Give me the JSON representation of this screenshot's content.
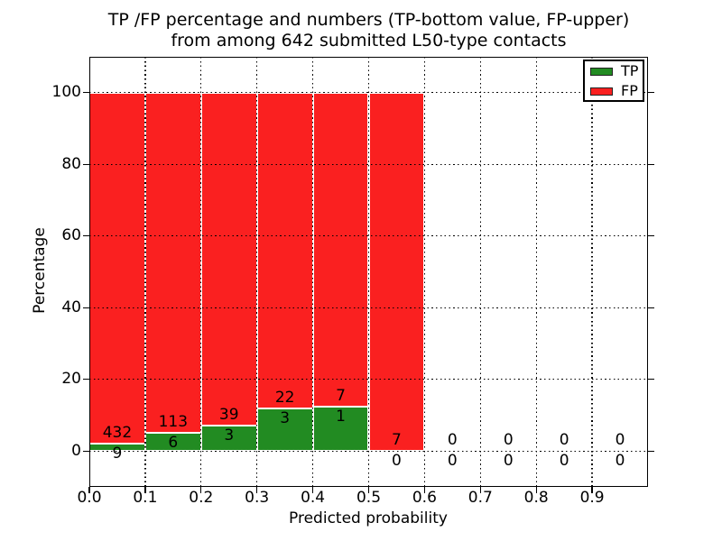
{
  "figure": {
    "title_line1": "TP /FP percentage and numbers (TP-bottom value, FP-upper)",
    "title_line2": "from among 642 submitted L50-type contacts"
  },
  "axes": {
    "xlabel": "Predicted probability",
    "ylabel": "Percentage",
    "x_tick_labels": [
      "0.0",
      "0.1",
      "0.2",
      "0.3",
      "0.4",
      "0.5",
      "0.6",
      "0.7",
      "0.8",
      "0.9"
    ],
    "x_tick_values": [
      0.0,
      0.1,
      0.2,
      0.3,
      0.4,
      0.5,
      0.6,
      0.7,
      0.8,
      0.9
    ],
    "y_tick_labels": [
      "0",
      "20",
      "40",
      "60",
      "80",
      "100"
    ],
    "y_tick_values": [
      0,
      20,
      40,
      60,
      80,
      100
    ],
    "xlim": [
      0.0,
      1.0
    ],
    "ylim": [
      -10,
      110
    ],
    "grid": "dotted"
  },
  "legend": {
    "position": "upper right",
    "entries": [
      {
        "label": "TP",
        "color": "#228B22"
      },
      {
        "label": "FP",
        "color": "#FA2020"
      }
    ]
  },
  "chart_data": {
    "type": "bar",
    "stacked": true,
    "normalized_to_percent": 100,
    "title": "TP /FP percentage and numbers (TP-bottom value, FP-upper) from among 642 submitted L50-type contacts",
    "xlabel": "Predicted probability",
    "ylabel": "Percentage",
    "total_contacts": 642,
    "bin_width": 0.1,
    "bin_starts": [
      0.0,
      0.1,
      0.2,
      0.3,
      0.4,
      0.5,
      0.6,
      0.7,
      0.8,
      0.9
    ],
    "series": [
      {
        "name": "TP",
        "color": "#228B22",
        "counts": [
          9,
          6,
          3,
          3,
          1,
          0,
          0,
          0,
          0,
          0
        ]
      },
      {
        "name": "FP",
        "color": "#FA2020",
        "counts": [
          432,
          113,
          39,
          22,
          7,
          7,
          0,
          0,
          0,
          0
        ]
      }
    ],
    "tp_percent_by_bin": [
      2.04,
      5.04,
      7.14,
      12.0,
      12.5,
      0.0,
      null,
      null,
      null,
      null
    ],
    "bars_drawn_for_bins_with_data_only": true,
    "ylim": [
      -10,
      110
    ],
    "legend_position": "upper right"
  }
}
